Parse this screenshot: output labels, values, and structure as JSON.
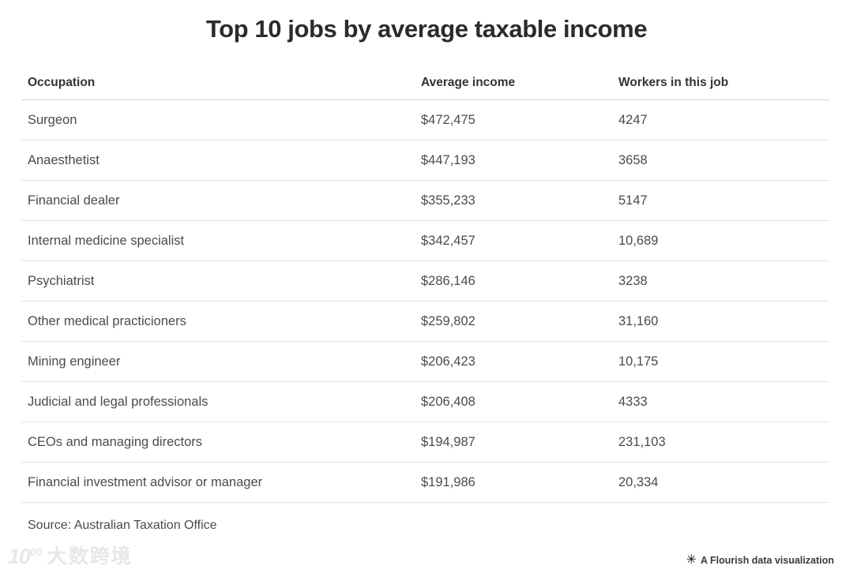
{
  "title": "Top 10 jobs by average taxable income",
  "table": {
    "columns": [
      "Occupation",
      "Average income",
      "Workers in this job"
    ],
    "rows": [
      {
        "occupation": "Surgeon",
        "income": "$472,475",
        "workers": "4247"
      },
      {
        "occupation": "Anaesthetist",
        "income": "$447,193",
        "workers": "3658"
      },
      {
        "occupation": "Financial dealer",
        "income": "$355,233",
        "workers": "5147"
      },
      {
        "occupation": "Internal medicine specialist",
        "income": "$342,457",
        "workers": "10,689"
      },
      {
        "occupation": "Psychiatrist",
        "income": "$286,146",
        "workers": "3238"
      },
      {
        "occupation": "Other medical practicioners",
        "income": "$259,802",
        "workers": "31,160"
      },
      {
        "occupation": "Mining engineer",
        "income": "$206,423",
        "workers": "10,175"
      },
      {
        "occupation": "Judicial and legal professionals",
        "income": "$206,408",
        "workers": "4333"
      },
      {
        "occupation": "CEOs and managing directors",
        "income": "$194,987",
        "workers": "231,103"
      },
      {
        "occupation": "Financial investment advisor or manager",
        "income": "$191,986",
        "workers": "20,334"
      }
    ]
  },
  "footer": {
    "source": "Source: Australian Taxation Office",
    "watermark_logo": "10",
    "watermark_logo_sup": "00",
    "watermark_brand": "大数跨境",
    "attribution_icon": "✳",
    "attribution_label": "A Flourish data visualization"
  },
  "colors": {
    "background": "#ffffff",
    "title_text": "#2b2b2b",
    "header_text": "#333333",
    "cell_text": "#4b4b4b",
    "header_divider": "#d5d5d5",
    "row_divider": "#e3e3e3",
    "watermark": "#e7e7e7",
    "attribution_text": "#3a3a3a"
  },
  "chart_data": {
    "type": "table",
    "title": "Top 10 jobs by average taxable income",
    "columns": [
      "Occupation",
      "Average income",
      "Workers in this job"
    ],
    "rows": [
      [
        "Surgeon",
        "$472,475",
        "4247"
      ],
      [
        "Anaesthetist",
        "$447,193",
        "3658"
      ],
      [
        "Financial dealer",
        "$355,233",
        "5147"
      ],
      [
        "Internal medicine specialist",
        "$342,457",
        "10,689"
      ],
      [
        "Psychiatrist",
        "$286,146",
        "3238"
      ],
      [
        "Other medical practicioners",
        "$259,802",
        "31,160"
      ],
      [
        "Mining engineer",
        "$206,423",
        "10,175"
      ],
      [
        "Judicial and legal professionals",
        "$206,408",
        "4333"
      ],
      [
        "CEOs and managing directors",
        "$194,987",
        "231,103"
      ],
      [
        "Financial investment advisor or manager",
        "$191,986",
        "20,334"
      ]
    ],
    "average_income_values": [
      472475,
      447193,
      355233,
      342457,
      286146,
      259802,
      206423,
      206408,
      194987,
      191986
    ],
    "workers_values": [
      4247,
      3658,
      5147,
      10689,
      3238,
      31160,
      10175,
      4333,
      231103,
      20334
    ],
    "source": "Australian Taxation Office",
    "legend_position": "none",
    "grid": "horizontal-row-dividers"
  }
}
